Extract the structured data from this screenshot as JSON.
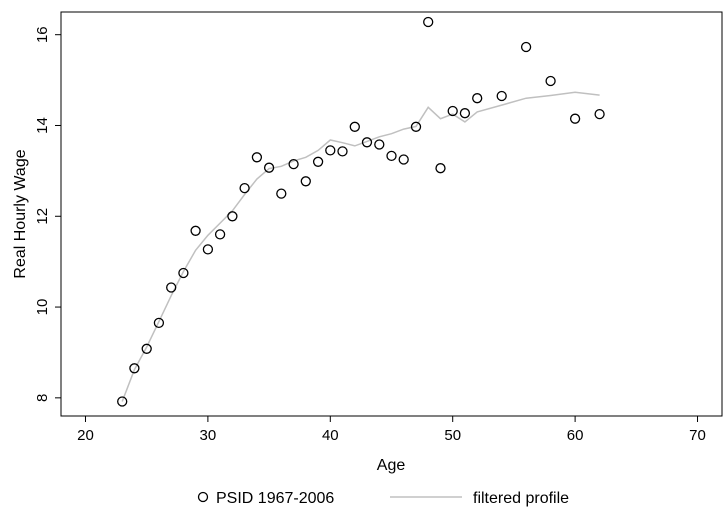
{
  "chart_data": {
    "type": "scatter",
    "xlabel": "Age",
    "ylabel": "Real Hourly Wage",
    "xlim": [
      18,
      72
    ],
    "ylim": [
      7.6,
      16.5
    ],
    "xticks": [
      20,
      30,
      40,
      50,
      60,
      70
    ],
    "yticks": [
      8,
      10,
      12,
      14,
      16
    ],
    "grid": false,
    "legend_position": "bottom",
    "colors": {
      "points": "#000000",
      "profile": "#c0c0c0"
    },
    "series": [
      {
        "name": "PSID 1967-2006",
        "type": "scatter",
        "marker": "hollow-circle",
        "x": [
          23,
          24,
          25,
          26,
          27,
          28,
          29,
          30,
          31,
          32,
          33,
          34,
          35,
          36,
          37,
          38,
          39,
          40,
          41,
          42,
          43,
          44,
          45,
          46,
          47,
          48,
          49,
          50,
          51,
          52,
          54,
          56,
          58,
          60,
          62
        ],
        "y": [
          7.92,
          8.65,
          9.08,
          9.65,
          10.43,
          10.75,
          11.68,
          11.27,
          11.6,
          12.0,
          12.62,
          13.3,
          13.07,
          12.5,
          13.15,
          12.77,
          13.2,
          13.45,
          13.43,
          13.97,
          13.63,
          13.58,
          13.33,
          13.25,
          13.97,
          16.28,
          13.06,
          14.32,
          14.27,
          14.6,
          14.65,
          15.73,
          14.98,
          14.15,
          14.25
        ]
      },
      {
        "name": "filtered profile",
        "type": "line",
        "x": [
          23,
          24,
          25,
          26,
          27,
          28,
          29,
          30,
          31,
          32,
          33,
          34,
          35,
          36,
          37,
          38,
          39,
          40,
          41,
          42,
          43,
          44,
          45,
          46,
          47,
          48,
          49,
          50,
          51,
          52,
          54,
          56,
          58,
          60,
          62
        ],
        "y": [
          7.92,
          8.62,
          9.12,
          9.68,
          10.25,
          10.78,
          11.25,
          11.58,
          11.85,
          12.12,
          12.48,
          12.82,
          13.05,
          13.1,
          13.22,
          13.3,
          13.45,
          13.68,
          13.62,
          13.55,
          13.65,
          13.75,
          13.82,
          13.92,
          13.98,
          14.4,
          14.15,
          14.25,
          14.08,
          14.3,
          14.45,
          14.6,
          14.66,
          14.73,
          14.67
        ]
      }
    ]
  }
}
